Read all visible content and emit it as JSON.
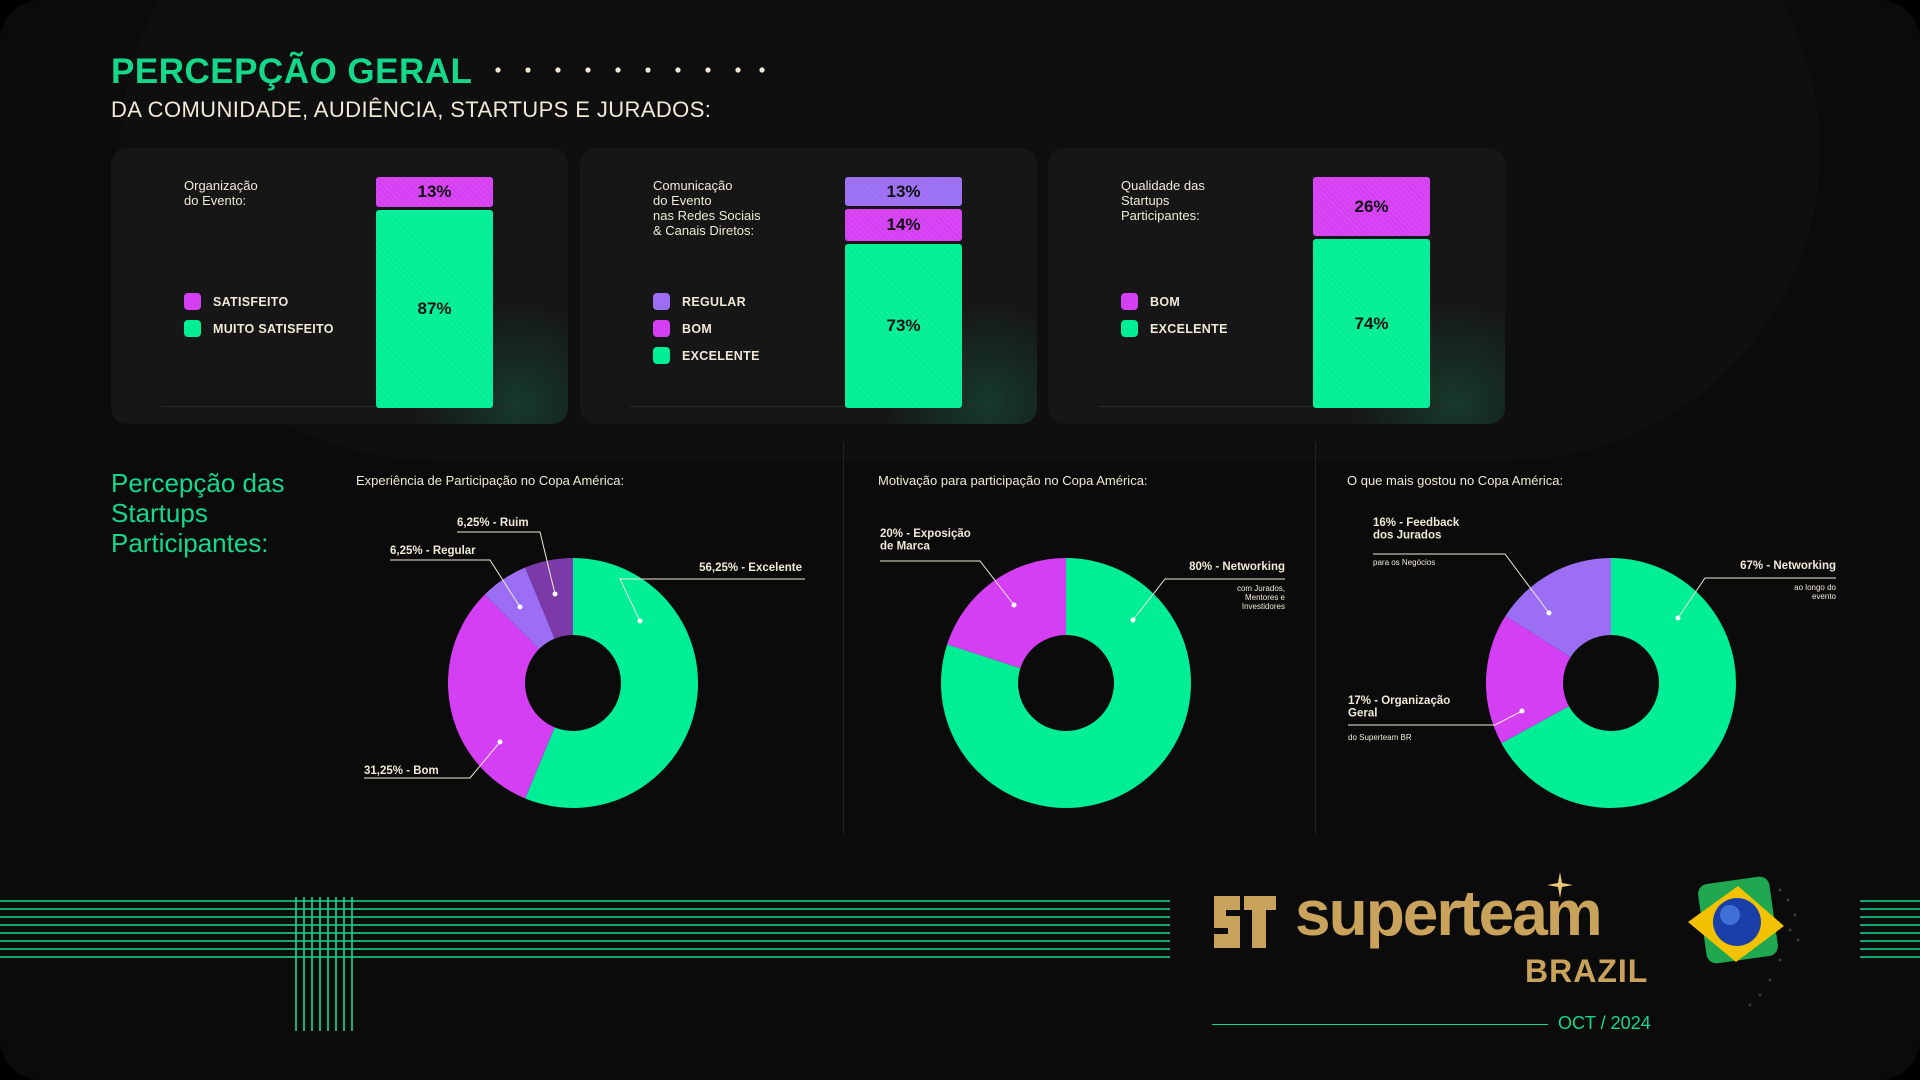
{
  "header": {
    "title": "PERCEPÇÃO GERAL",
    "subtitle": "DA COMUNIDADE, AUDIÊNCIA, STARTUPS E JURADOS:"
  },
  "colors": {
    "green": "#00ee95",
    "magenta": "#d53ff3",
    "purple": "#9b6ef3",
    "dark_purple": "#7b3aa8",
    "text": "#f0e9d8",
    "gold": "#c9a35c"
  },
  "section_title": "Percepção das\nStartups\nParticipantes:",
  "brand": {
    "name": "superteam",
    "country": "BRAZIL",
    "date": "OCT / 2024"
  },
  "chart_data": [
    {
      "type": "bar",
      "title": "Organização\ndo Evento:",
      "stacked": true,
      "legend": [
        {
          "name": "SATISFEITO",
          "color": "#d53ff3"
        },
        {
          "name": "MUITO SATISFEITO",
          "color": "#00ee95"
        }
      ],
      "segments": [
        {
          "name": "SATISFEITO",
          "value": 13,
          "label": "13%",
          "color": "#d53ff3"
        },
        {
          "name": "MUITO SATISFEITO",
          "value": 87,
          "label": "87%",
          "color": "#00ee95"
        }
      ]
    },
    {
      "type": "bar",
      "title": "Comunicação\ndo Evento\nnas Redes Sociais\n& Canais Diretos:",
      "stacked": true,
      "legend": [
        {
          "name": "REGULAR",
          "color": "#9b6ef3"
        },
        {
          "name": "BOM",
          "color": "#d53ff3"
        },
        {
          "name": "EXCELENTE",
          "color": "#00ee95"
        }
      ],
      "segments": [
        {
          "name": "REGULAR",
          "value": 13,
          "label": "13%",
          "color": "#9b6ef3"
        },
        {
          "name": "BOM",
          "value": 14,
          "label": "14%",
          "color": "#d53ff3"
        },
        {
          "name": "EXCELENTE",
          "value": 73,
          "label": "73%",
          "color": "#00ee95"
        }
      ]
    },
    {
      "type": "bar",
      "title": "Qualidade das\nStartups\nParticipantes:",
      "stacked": true,
      "legend": [
        {
          "name": "BOM",
          "color": "#d53ff3"
        },
        {
          "name": "EXCELENTE",
          "color": "#00ee95"
        }
      ],
      "segments": [
        {
          "name": "BOM",
          "value": 26,
          "label": "26%",
          "color": "#d53ff3"
        },
        {
          "name": "EXCELENTE",
          "value": 74,
          "label": "74%",
          "color": "#00ee95"
        }
      ]
    },
    {
      "type": "pie",
      "title": "Experiência de Participação no Copa América:",
      "donut": true,
      "slices": [
        {
          "label": "56,25% - Excelente",
          "value": 56.25,
          "color": "#00ee95"
        },
        {
          "label": "31,25% - Bom",
          "value": 31.25,
          "color": "#d53ff3"
        },
        {
          "label": "6,25% - Regular",
          "value": 6.25,
          "color": "#9b6ef3"
        },
        {
          "label": "6,25% - Ruim",
          "value": 6.25,
          "color": "#7b3aa8"
        }
      ]
    },
    {
      "type": "pie",
      "title": "Motivação para participação no Copa América:",
      "donut": true,
      "slices": [
        {
          "label": "80% - Networking",
          "sublabel": "com Jurados,\nMentores e\nInvestidores",
          "value": 80,
          "color": "#00ee95"
        },
        {
          "label": "20% - Exposição\nde Marca",
          "value": 20,
          "color": "#d53ff3"
        }
      ]
    },
    {
      "type": "pie",
      "title": "O que mais gostou no Copa América:",
      "donut": true,
      "slices": [
        {
          "label": "67% - Networking",
          "sublabel": "ao longo do\nevento",
          "value": 67,
          "color": "#00ee95"
        },
        {
          "label": "17% - Organização\nGeral",
          "sublabel": "do Superteam BR",
          "value": 17,
          "color": "#d53ff3"
        },
        {
          "label": "16% - Feedback\ndos Jurados",
          "sublabel": "para os Negócios",
          "value": 16,
          "color": "#9b6ef3"
        }
      ]
    }
  ]
}
